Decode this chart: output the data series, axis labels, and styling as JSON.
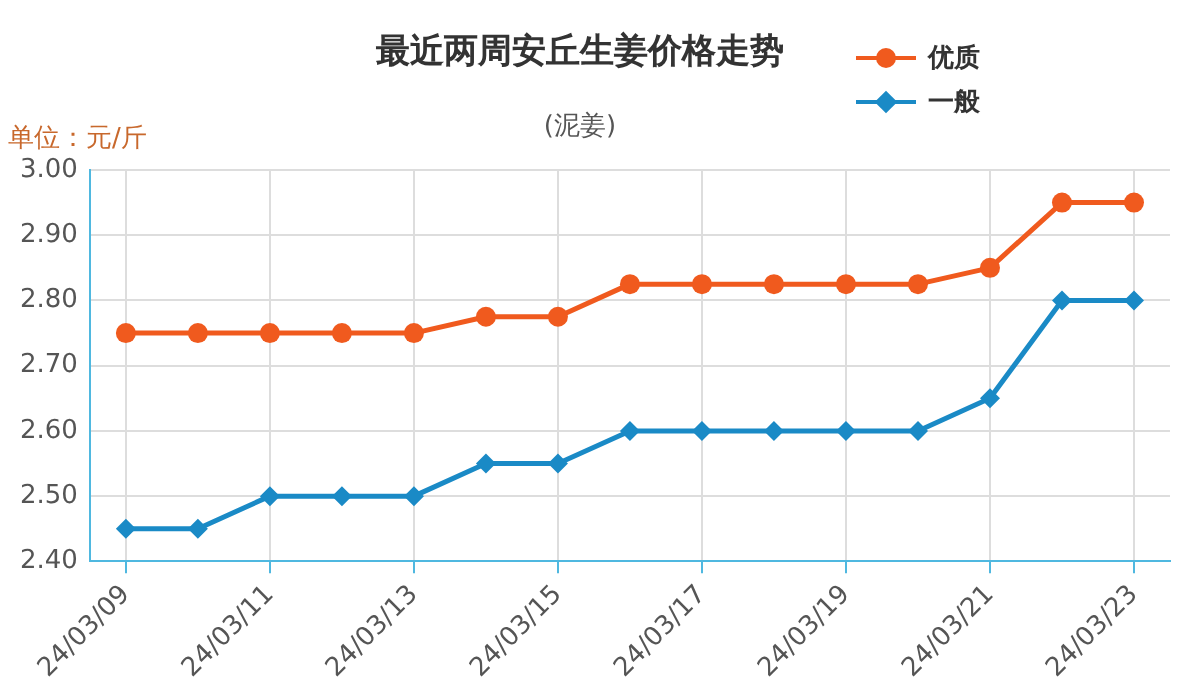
{
  "chart_data": {
    "type": "line",
    "title": "最近两周安丘生姜价格走势",
    "subtitle": "(泥姜)",
    "ylabel": "单位：元/斤",
    "categories": [
      "24/03/09",
      null,
      "24/03/11",
      null,
      "24/03/13",
      null,
      "24/03/15",
      null,
      "24/03/17",
      null,
      "24/03/19",
      null,
      "24/03/21",
      null,
      "24/03/23"
    ],
    "series": [
      {
        "name": "优质",
        "color": "#f05a1e",
        "marker": "circle",
        "values": [
          2.75,
          2.75,
          2.75,
          2.75,
          2.75,
          2.775,
          2.775,
          2.825,
          2.825,
          2.825,
          2.825,
          2.825,
          2.85,
          2.95,
          2.95
        ]
      },
      {
        "name": "一般",
        "color": "#1a8ac6",
        "marker": "diamond",
        "values": [
          2.45,
          2.45,
          2.5,
          2.5,
          2.5,
          2.55,
          2.55,
          2.6,
          2.6,
          2.6,
          2.6,
          2.6,
          2.65,
          2.8,
          2.8
        ]
      }
    ],
    "ylim": [
      2.4,
      3.0
    ],
    "yticks": [
      {
        "value": 2.4,
        "label": "2.40"
      },
      {
        "value": 2.5,
        "label": "2.50"
      },
      {
        "value": 2.6,
        "label": "2.60"
      },
      {
        "value": 2.7,
        "label": "2.70"
      },
      {
        "value": 2.8,
        "label": "2.80"
      },
      {
        "value": 2.9,
        "label": "2.90"
      },
      {
        "value": 3.0,
        "label": "3.00"
      }
    ],
    "grid": true,
    "legend": "top right"
  }
}
